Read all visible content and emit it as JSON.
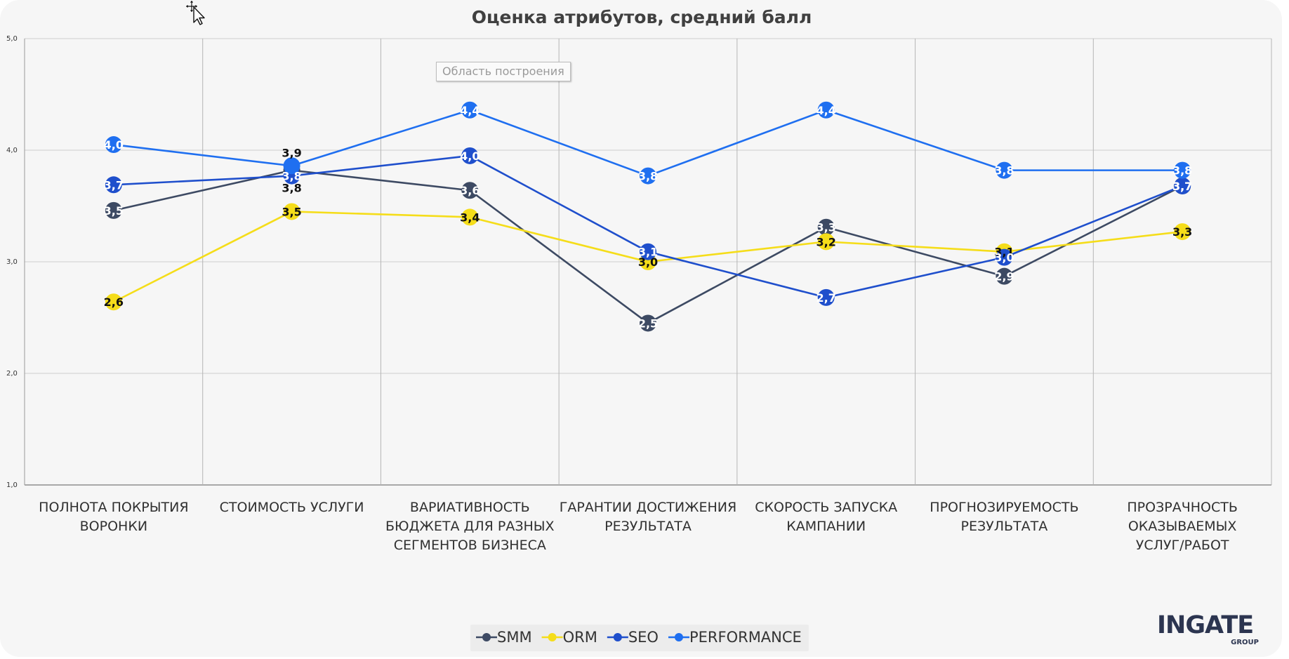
{
  "chart_data": {
    "type": "line",
    "title": "Оценка атрибутов, средний балл",
    "categories": [
      [
        "ПОЛНОТА ПОКРЫТИЯ",
        "ВОРОНКИ"
      ],
      [
        "СТОИМОСТЬ УСЛУГИ"
      ],
      [
        "ВАРИАТИВНОСТЬ",
        "БЮДЖЕТА ДЛЯ РАЗНЫХ",
        "СЕГМЕНТОВ БИЗНЕСА"
      ],
      [
        "ГАРАНТИИ ДОСТИЖЕНИЯ",
        "РЕЗУЛЬТАТА"
      ],
      [
        "СКОРОСТЬ ЗАПУСКА",
        "КАМПАНИИ"
      ],
      [
        "ПРОГНОЗИРУЕМОСТЬ",
        "РЕЗУЛЬТАТА"
      ],
      [
        "ПРОЗРАЧНОСТЬ",
        "ОКАЗЫВАЕМЫХ",
        "УСЛУГ/РАБОТ"
      ]
    ],
    "ylim": [
      1.0,
      5.0
    ],
    "yticks": [
      "1,0",
      "2,0",
      "3,0",
      "4,0",
      "5,0"
    ],
    "ytick_values": [
      1.0,
      2.0,
      3.0,
      4.0,
      5.0
    ],
    "grid": true,
    "legend_position": "bottom",
    "series": [
      {
        "name": "SMM",
        "color": "#3d4a63",
        "label_style": "white",
        "values": [
          3.46,
          3.82,
          3.64,
          2.45,
          3.31,
          2.87,
          3.68
        ],
        "labels": [
          "3,5",
          "3,8",
          "3,6",
          "2,5",
          "3,3",
          "2,9",
          "3,7"
        ]
      },
      {
        "name": "ORM",
        "color": "#f5dd1a",
        "label_style": "dark",
        "values": [
          2.64,
          3.45,
          3.4,
          3.0,
          3.18,
          3.09,
          3.27
        ],
        "labels": [
          "2,6",
          "3,5",
          "3,4",
          "3,0",
          "3,2",
          "3,1",
          "3,3"
        ]
      },
      {
        "name": "SEO",
        "color": "#1f4fcc",
        "label_style": "white",
        "values": [
          3.69,
          3.77,
          3.95,
          3.09,
          2.68,
          3.04,
          3.68
        ],
        "labels": [
          "3,7",
          "3,8",
          "4,0",
          "3,1",
          "2,7",
          "3,0",
          "3,7"
        ]
      },
      {
        "name": "PERFORMANCE",
        "color": "#1f6ff0",
        "label_style": "white",
        "values": [
          4.05,
          3.86,
          4.36,
          3.77,
          4.36,
          3.82,
          3.82
        ],
        "labels": [
          "4,0",
          "3,9",
          "4,4",
          "3,8",
          "4,4",
          "3,8",
          "3,8"
        ]
      }
    ],
    "label_overrides": [
      {
        "series": 0,
        "point": 1,
        "text": "3,8",
        "style": "dark",
        "pos": "below"
      },
      {
        "series": 3,
        "point": 1,
        "text": "3,9",
        "style": "dark",
        "pos": "above"
      },
      {
        "series": 2,
        "point": 1,
        "text": "3,8",
        "style": "white",
        "pos": "center"
      }
    ]
  },
  "tooltip": {
    "text": "Область построения"
  },
  "logo": {
    "main": "INGATE",
    "sub": "GROUP"
  },
  "icons": {
    "cursor": "move-cursor-icon"
  }
}
